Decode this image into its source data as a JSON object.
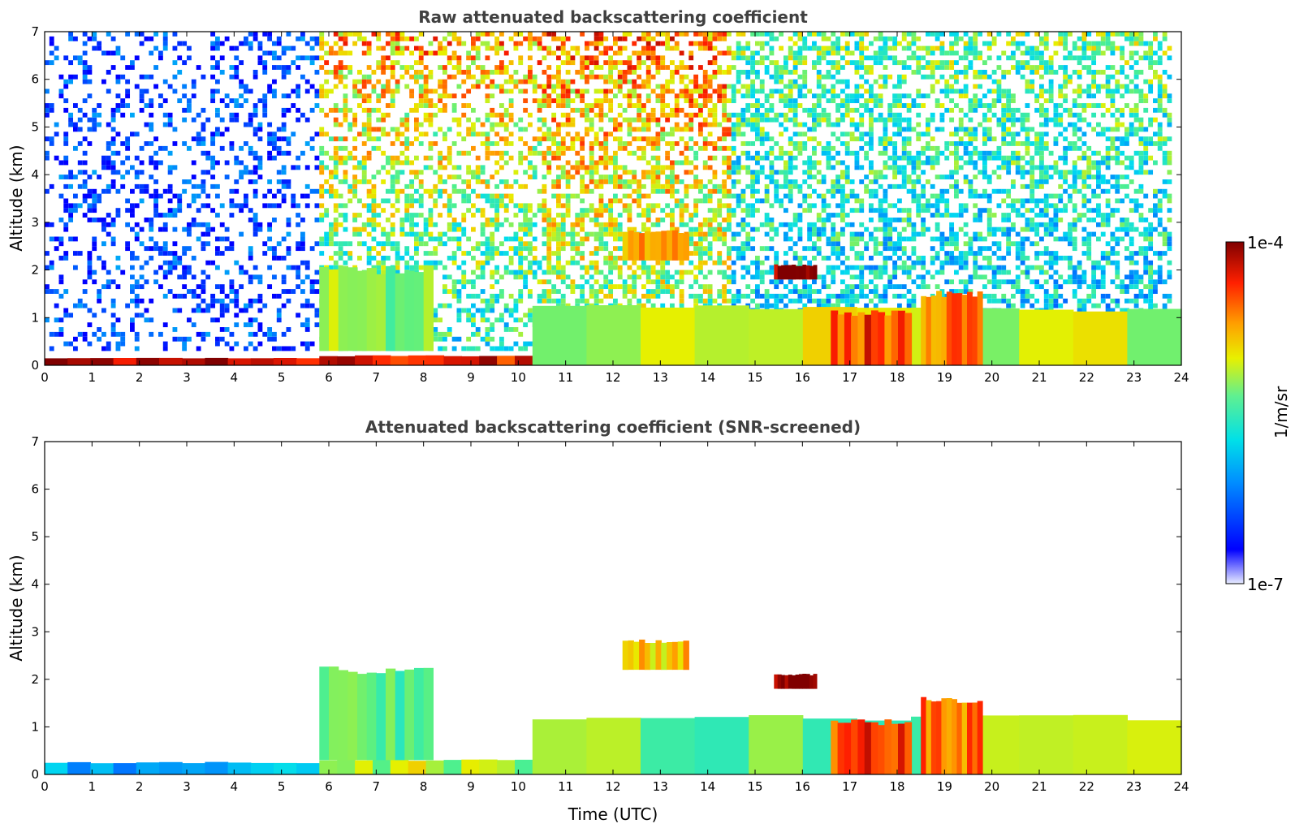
{
  "chart_data": [
    {
      "type": "heatmap",
      "title": "Raw attenuated backscattering coefficient",
      "xlabel": "",
      "ylabel": "Altitude (km)",
      "xlim": [
        0,
        24
      ],
      "ylim": [
        0,
        7
      ],
      "xticks": [
        "0",
        "1",
        "2",
        "3",
        "4",
        "5",
        "6",
        "7",
        "8",
        "9",
        "10",
        "11",
        "12",
        "13",
        "14",
        "15",
        "16",
        "17",
        "18",
        "19",
        "20",
        "21",
        "22",
        "23",
        "24"
      ],
      "yticks": [
        "0",
        "1",
        "2",
        "3",
        "4",
        "5",
        "6",
        "7"
      ],
      "screened": false,
      "features": [
        {
          "name": "surface layer",
          "t": [
            0,
            5.8
          ],
          "alt": [
            0,
            0.15
          ],
          "level": 0.95
        },
        {
          "name": "aerosol layer",
          "t": [
            5.8,
            10.3
          ],
          "alt": [
            0,
            0.2
          ],
          "level": 0.9
        },
        {
          "name": "cloud columns",
          "t": [
            5.8,
            8.2
          ],
          "alt": [
            0.3,
            2.0
          ],
          "level": 0.55
        },
        {
          "name": "elevated cloud",
          "t": [
            12.2,
            13.6
          ],
          "alt": [
            2.2,
            2.8
          ],
          "level": 0.75
        },
        {
          "name": "boundary layer",
          "t": [
            10.3,
            24
          ],
          "alt": [
            0,
            1.2
          ],
          "level": 0.6
        },
        {
          "name": "cloud top",
          "t": [
            15.4,
            16.3
          ],
          "alt": [
            1.8,
            2.1
          ],
          "level": 1.0
        },
        {
          "name": "dense cloud",
          "t": [
            16.6,
            18.3
          ],
          "alt": [
            0,
            1.1
          ],
          "level": 0.85
        },
        {
          "name": "cloud layer",
          "t": [
            18.5,
            19.8
          ],
          "alt": [
            0,
            1.5
          ],
          "level": 0.8
        }
      ]
    },
    {
      "type": "heatmap",
      "title": "Attenuated backscattering coefficient (SNR-screened)",
      "xlabel": "Time (UTC)",
      "ylabel": "Altitude (km)",
      "xlim": [
        0,
        24
      ],
      "ylim": [
        0,
        7
      ],
      "xticks": [
        "0",
        "1",
        "2",
        "3",
        "4",
        "5",
        "6",
        "7",
        "8",
        "9",
        "10",
        "11",
        "12",
        "13",
        "14",
        "15",
        "16",
        "17",
        "18",
        "19",
        "20",
        "21",
        "22",
        "23",
        "24"
      ],
      "yticks": [
        "0",
        "1",
        "2",
        "3",
        "4",
        "5",
        "6",
        "7"
      ],
      "screened": true,
      "features": [
        {
          "name": "surface layer",
          "t": [
            0,
            5.8
          ],
          "alt": [
            0,
            0.25
          ],
          "level": 0.3
        },
        {
          "name": "aerosol layer",
          "t": [
            5.8,
            10.3
          ],
          "alt": [
            0,
            0.3
          ],
          "level": 0.6
        },
        {
          "name": "cloud columns",
          "t": [
            5.8,
            8.2
          ],
          "alt": [
            0.3,
            2.2
          ],
          "level": 0.5
        },
        {
          "name": "elevated cloud",
          "t": [
            12.2,
            13.6
          ],
          "alt": [
            2.2,
            2.8
          ],
          "level": 0.7
        },
        {
          "name": "boundary layer",
          "t": [
            10.3,
            24
          ],
          "alt": [
            0,
            1.2
          ],
          "level": 0.55
        },
        {
          "name": "cloud top",
          "t": [
            15.4,
            16.3
          ],
          "alt": [
            1.8,
            2.1
          ],
          "level": 1.0
        },
        {
          "name": "dense cloud",
          "t": [
            16.6,
            18.3
          ],
          "alt": [
            0,
            1.1
          ],
          "level": 0.85
        },
        {
          "name": "cloud layer",
          "t": [
            18.5,
            19.8
          ],
          "alt": [
            0,
            1.6
          ],
          "level": 0.8
        }
      ]
    }
  ],
  "colorbar": {
    "max_label": "1e-4",
    "min_label": "1e-7",
    "unit": "1/m/sr",
    "colormap": "jet",
    "scale": "log"
  }
}
